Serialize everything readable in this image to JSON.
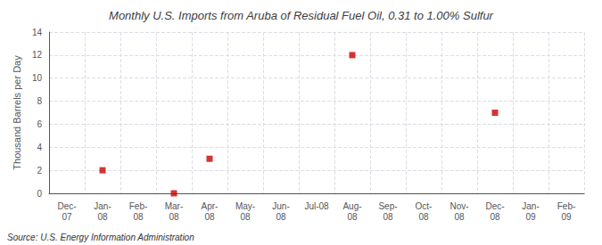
{
  "chart_data": {
    "type": "scatter",
    "title": "Monthly U.S. Imports from Aruba of Residual Fuel Oil, 0.31 to 1.00% Sulfur",
    "ylabel": "Thousand Barrels per Day",
    "source": "Source: U.S. Energy Information Administration",
    "categories": [
      "Dec-\n07",
      "Jan-\n08",
      "Feb-\n08",
      "Mar-\n08",
      "Apr-\n08",
      "May-\n08",
      "Jun-\n08",
      "Jul-08",
      "Aug-\n08",
      "Sep-\n08",
      "Oct-\n08",
      "Nov-\n08",
      "Dec-\n08",
      "Jan-\n09",
      "Feb-\n09"
    ],
    "values": [
      null,
      2,
      null,
      0,
      3,
      null,
      null,
      null,
      12,
      null,
      null,
      null,
      7,
      null,
      null
    ],
    "color": "#CC0000",
    "marker": "square",
    "ylim": [
      0,
      14
    ],
    "yticks": [
      0,
      2,
      4,
      6,
      8,
      10,
      12,
      14
    ],
    "grid": true
  }
}
